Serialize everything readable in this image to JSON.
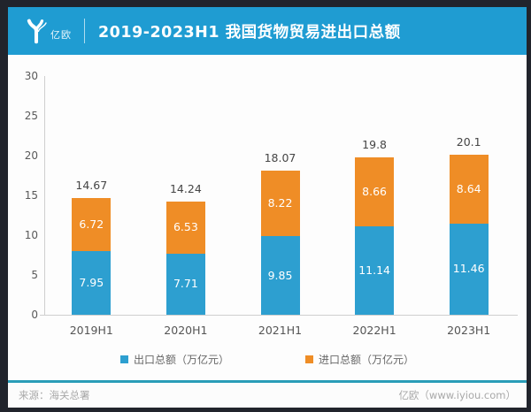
{
  "page": {
    "frame_color": "#21242c",
    "card_color": "#fdfdfd"
  },
  "header": {
    "logo_text": "亿欧",
    "title": "2019-2023H1 我国货物贸易进出口总额",
    "bg_color": "#1f9cd2"
  },
  "chart_data": {
    "type": "bar",
    "stacked": true,
    "title": "2019-2023H1 我国货物贸易进出口总额",
    "categories": [
      "2019H1",
      "2020H1",
      "2021H1",
      "2022H1",
      "2023H1"
    ],
    "series": [
      {
        "name": "出口总额（万亿元）",
        "color": "#2d9fd0",
        "values": [
          7.95,
          7.71,
          9.85,
          11.14,
          11.46
        ]
      },
      {
        "name": "进口总额（万亿元）",
        "color": "#ef8d26",
        "values": [
          6.72,
          6.53,
          8.22,
          8.66,
          8.64
        ]
      }
    ],
    "totals": [
      "14.67",
      "14.24",
      "18.07",
      "19.8",
      "20.1"
    ],
    "y_ticks": [
      0,
      5,
      10,
      15,
      20,
      25,
      30
    ],
    "ylim": [
      0,
      30
    ],
    "xlabel": "",
    "ylabel": "",
    "grid": false,
    "legend_position": "bottom"
  },
  "footer": {
    "source": "来源：海关总署",
    "credit": "亿欧（www.iyiou.com）",
    "divider_color": "#2a9db8"
  }
}
